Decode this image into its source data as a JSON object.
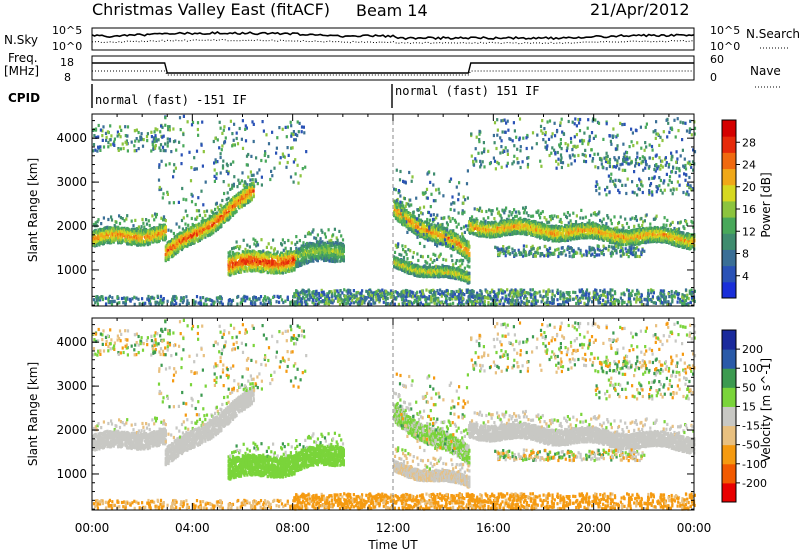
{
  "header": {
    "station": "Christmas Valley East (fitACF)",
    "beam": "Beam 14",
    "date": "21/Apr/2012"
  },
  "top_labels": {
    "nsky": "N.Sky",
    "nsearch": "N.Search",
    "freq_line1": "Freq.",
    "freq_line2": "[MHz]",
    "nave": "Nave",
    "cpid": "CPID",
    "noise_ticks": [
      "10^5",
      "10^0"
    ],
    "noise_ticks_right": [
      "10^5",
      "10^0"
    ],
    "freq_ticks": [
      "18",
      "8"
    ],
    "nave_ticks": [
      "60",
      "0"
    ]
  },
  "cpid_segments": [
    {
      "label": "normal (fast) -151 IF",
      "start_hour": 0,
      "end_hour": 12
    },
    {
      "label": "normal (fast) 151 IF",
      "start_hour": 12,
      "end_hour": 24
    }
  ],
  "chart_data": [
    {
      "type": "heatmap",
      "name": "power",
      "xlabel": "",
      "ylabel": "Slant Range [km]",
      "colorbar_label": "Power [dB]",
      "xlim": [
        0,
        24
      ],
      "ylim": [
        180,
        4550
      ],
      "yticks": [
        1000,
        2000,
        3000,
        4000
      ],
      "colorbar_ticks": [
        4,
        8,
        12,
        16,
        20,
        24,
        28
      ],
      "colorbar_range": [
        0,
        32
      ],
      "colorscale": [
        "#1a2fd9",
        "#2a52b6",
        "#3a6f96",
        "#3f8c6f",
        "#48a85a",
        "#8cc43e",
        "#d6d820",
        "#f0a818",
        "#f06a10",
        "#e62a0a",
        "#d40000"
      ]
    },
    {
      "type": "heatmap",
      "name": "velocity",
      "xlabel": "Time UT",
      "ylabel": "Slant Range [km]",
      "colorbar_label": "Velocity [m s^-1]",
      "xlim": [
        0,
        24
      ],
      "ylim": [
        180,
        4550
      ],
      "yticks": [
        1000,
        2000,
        3000,
        4000
      ],
      "xtick_labels": [
        "00:00",
        "04:00",
        "08:00",
        "12:00",
        "16:00",
        "20:00",
        "00:00"
      ],
      "xtick_hours": [
        0,
        4,
        8,
        12,
        16,
        20,
        24
      ],
      "colorbar_ticks": [
        -200,
        -100,
        -50,
        -15,
        15,
        50,
        100,
        200
      ],
      "colorscale": [
        "#e80000",
        "#f25a00",
        "#f59a10",
        "#e8c080",
        "#c8c8c4",
        "#7ad43a",
        "#3c9a50",
        "#2a5aa8",
        "#1a2a9c"
      ]
    }
  ],
  "structures": [
    {
      "t0": 0.0,
      "t1": 2.9,
      "r0": 1700,
      "r1": 1850,
      "w": 180,
      "p": 24,
      "v": 0
    },
    {
      "t0": 2.9,
      "t1": 6.4,
      "r0": 1350,
      "r1": 2750,
      "w": 200,
      "p": 26,
      "v": 0
    },
    {
      "t0": 5.4,
      "t1": 8.1,
      "r0": 1100,
      "r1": 1250,
      "w": 230,
      "p": 28,
      "v": 30
    },
    {
      "t0": 8.1,
      "t1": 10.0,
      "r0": 1300,
      "r1": 1450,
      "w": 220,
      "p": 17,
      "v": 30
    },
    {
      "t0": 12.0,
      "t1": 15.0,
      "r0": 2350,
      "r1": 1400,
      "w": 200,
      "p": 24,
      "v": 20
    },
    {
      "t0": 12.0,
      "t1": 15.0,
      "r0": 1150,
      "r1": 800,
      "w": 120,
      "p": 20,
      "v": -10
    },
    {
      "t0": 15.0,
      "t1": 24.0,
      "r0": 2000,
      "r1": 1700,
      "w": 170,
      "p": 23,
      "v": 0
    }
  ]
}
